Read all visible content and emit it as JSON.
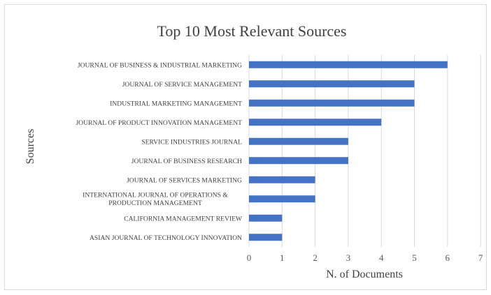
{
  "chart_data": {
    "type": "bar",
    "orientation": "horizontal",
    "title": "Top 10 Most Relevant Sources",
    "xlabel": "N. of Documents",
    "ylabel": "Sources",
    "xlim": [
      0,
      7
    ],
    "x_ticks": [
      "0",
      "1",
      "2",
      "3",
      "4",
      "5",
      "6",
      "7"
    ],
    "grid": true,
    "bar_color": "#4472c4",
    "categories": [
      "JOURNAL OF BUSINESS & INDUSTRIAL MARKETING",
      "JOURNAL OF SERVICE MANAGEMENT",
      "INDUSTRIAL MARKETING MANAGEMENT",
      "JOURNAL OF PRODUCT INNOVATION MANAGEMENT",
      "SERVICE INDUSTRIES JOURNAL",
      "JOURNAL OF BUSINESS RESEARCH",
      "JOURNAL OF SERVICES MARKETING",
      "INTERNATIONAL JOURNAL OF OPERATIONS & PRODUCTION MANAGEMENT",
      "CALIFORNIA MANAGEMENT REVIEW",
      "ASIAN JOURNAL OF TECHNOLOGY INNOVATION"
    ],
    "values": [
      6,
      5,
      5,
      4,
      3,
      3,
      2,
      2,
      1,
      1
    ]
  }
}
